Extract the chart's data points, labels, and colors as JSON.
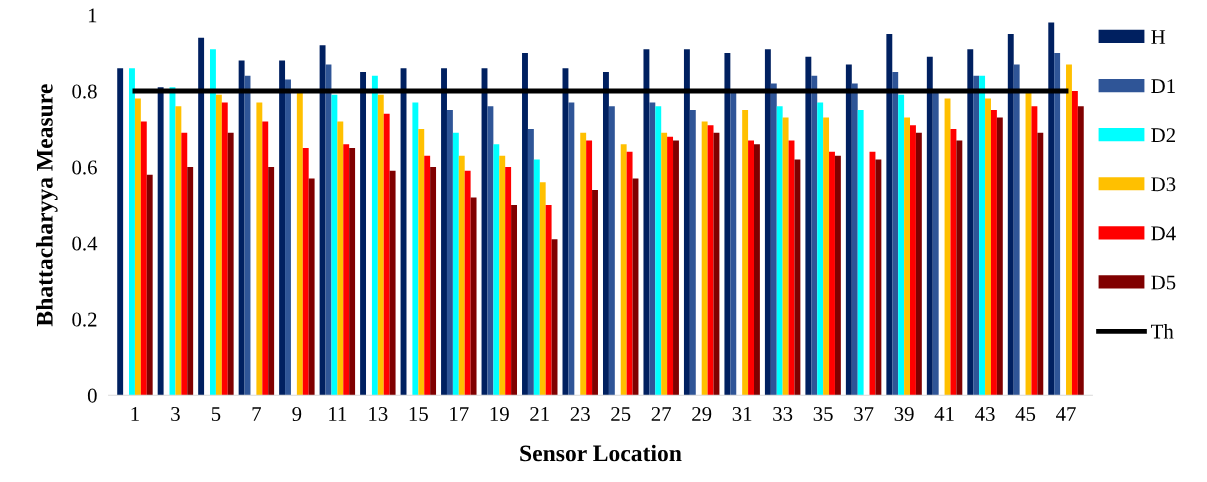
{
  "chart_data": {
    "type": "bar",
    "xlabel": "Sensor Location",
    "ylabel": "Bhattacharyya Measure",
    "categories": [
      "1",
      "3",
      "5",
      "7",
      "9",
      "11",
      "13",
      "15",
      "17",
      "19",
      "21",
      "23",
      "25",
      "27",
      "29",
      "31",
      "33",
      "35",
      "37",
      "39",
      "41",
      "43",
      "45",
      "47"
    ],
    "series": [
      {
        "name": "H",
        "color": "#002060",
        "values": [
          0.86,
          0.81,
          0.94,
          0.88,
          0.88,
          0.92,
          0.85,
          0.86,
          0.86,
          0.86,
          0.9,
          0.86,
          0.85,
          0.91,
          0.91,
          0.9,
          0.91,
          0.89,
          0.87,
          0.95,
          0.89,
          0.91,
          0.95,
          0.98
        ]
      },
      {
        "name": "D1",
        "color": "#2f5597",
        "values": [
          null,
          null,
          null,
          0.84,
          0.83,
          0.87,
          null,
          null,
          0.75,
          0.76,
          0.7,
          0.77,
          0.76,
          0.77,
          0.75,
          0.8,
          0.82,
          0.84,
          0.82,
          0.85,
          0.8,
          0.84,
          0.87,
          0.9
        ]
      },
      {
        "name": "D2",
        "color": "#00ffff",
        "values": [
          0.86,
          0.81,
          0.91,
          null,
          null,
          0.79,
          0.84,
          0.77,
          0.69,
          0.66,
          0.62,
          null,
          null,
          0.76,
          null,
          null,
          0.76,
          0.77,
          0.75,
          0.79,
          null,
          0.84,
          null,
          null
        ]
      },
      {
        "name": "D3",
        "color": "#ffc000",
        "values": [
          0.78,
          0.76,
          0.79,
          0.77,
          0.8,
          0.72,
          0.79,
          0.7,
          0.63,
          0.63,
          0.56,
          0.69,
          0.66,
          0.69,
          0.72,
          0.75,
          0.73,
          0.73,
          null,
          0.73,
          0.78,
          0.78,
          0.8,
          0.87
        ]
      },
      {
        "name": "D4",
        "color": "#ff0000",
        "values": [
          0.72,
          0.69,
          0.77,
          0.72,
          0.65,
          0.66,
          0.74,
          0.63,
          0.59,
          0.6,
          0.5,
          0.67,
          0.64,
          0.68,
          0.71,
          0.67,
          0.67,
          0.64,
          0.64,
          0.71,
          0.7,
          0.75,
          0.76,
          0.8
        ]
      },
      {
        "name": "D5",
        "color": "#800000",
        "values": [
          0.58,
          0.6,
          0.69,
          0.6,
          0.57,
          0.65,
          0.59,
          0.6,
          0.52,
          0.5,
          0.41,
          0.54,
          0.57,
          0.67,
          0.69,
          0.66,
          0.62,
          0.63,
          0.62,
          0.69,
          0.67,
          0.73,
          0.69,
          0.76
        ]
      },
      {
        "name": "Th",
        "type": "line",
        "color": "#000000",
        "values": [
          0.8,
          0.8,
          0.8,
          0.8,
          0.8,
          0.8,
          0.8,
          0.8,
          0.8,
          0.8,
          0.8,
          0.8,
          0.8,
          0.8,
          0.8,
          0.8,
          0.8,
          0.8,
          0.8,
          0.8,
          0.8,
          0.8,
          0.8,
          0.8
        ]
      }
    ],
    "ylim": [
      0,
      1
    ],
    "yticks": [
      0,
      0.2,
      0.4,
      0.6,
      0.8,
      1
    ],
    "legend": "right"
  }
}
